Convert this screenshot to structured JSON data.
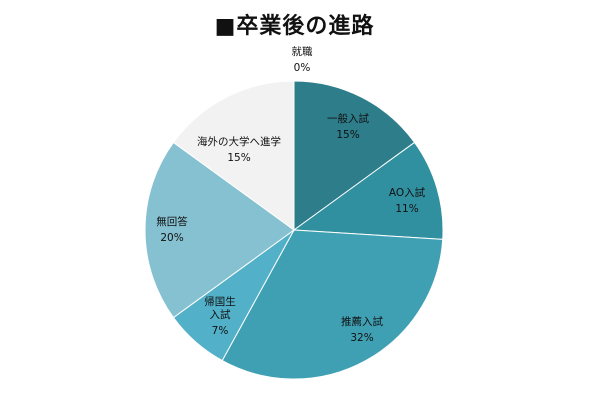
{
  "chart_data": {
    "type": "pie",
    "title": "■卒業後の進路",
    "unit": "%",
    "start": "12 o'clock",
    "direction": "clockwise",
    "slices": [
      {
        "label": "一般入試",
        "value": 15,
        "value_label": "15%",
        "color": "#2e7d8b"
      },
      {
        "label": "AO入試",
        "value": 11,
        "value_label": "11%",
        "color": "#3190a0"
      },
      {
        "label": "推薦入試",
        "value": 32,
        "value_label": "32%",
        "color": "#3fa0b4"
      },
      {
        "label": "帰国生入試",
        "value": 7,
        "value_label": "7%",
        "color": "#52b0c8"
      },
      {
        "label": "無回答",
        "value": 20,
        "value_label": "20%",
        "color": "#86c1d1"
      },
      {
        "label": "海外の大学へ進学",
        "value": 15,
        "value_label": "15%",
        "color": "#f2f2f2"
      },
      {
        "label": "就職",
        "value": 0,
        "value_label": "0%",
        "color": "#ffffff"
      }
    ]
  }
}
